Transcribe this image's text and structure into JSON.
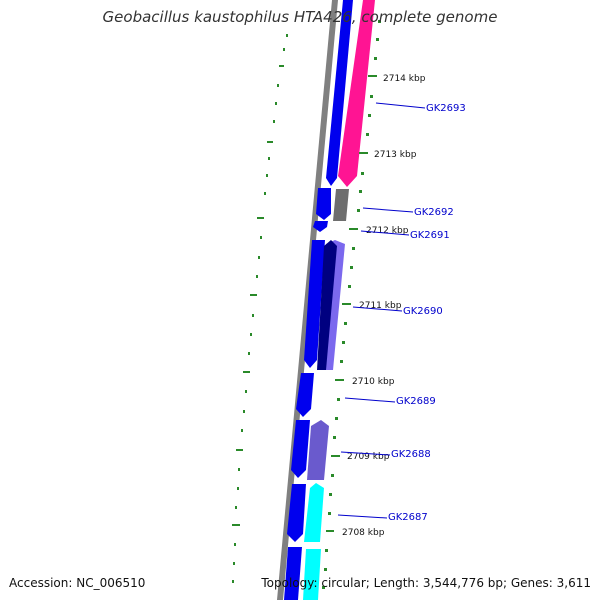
{
  "title": "Geobacillus kaustophilus HTA426, complete genome",
  "footer": {
    "accession": "Accession: NC_006510",
    "topology": "Topology: circular; Length: 3,544,776 bp; Genes: 3,611"
  },
  "colors": {
    "backbone": "#808080",
    "strand_forward": "#0000ee",
    "ticks": "#2a8a2a",
    "gene_label": "#0000cc",
    "magenta": "#ff1493",
    "cyan": "#00ffff",
    "slate": "#7b68ee",
    "navy": "#000080",
    "gray": "#6e6e6e"
  },
  "kbp_labels": [
    "2714 kbp",
    "2713 kbp",
    "2712 kbp",
    "2711 kbp",
    "2710 kbp",
    "2709 kbp",
    "2708 kbp"
  ],
  "genes": [
    "GK2693",
    "GK2692",
    "GK2691",
    "GK2690",
    "GK2689",
    "GK2688",
    "GK2687"
  ]
}
